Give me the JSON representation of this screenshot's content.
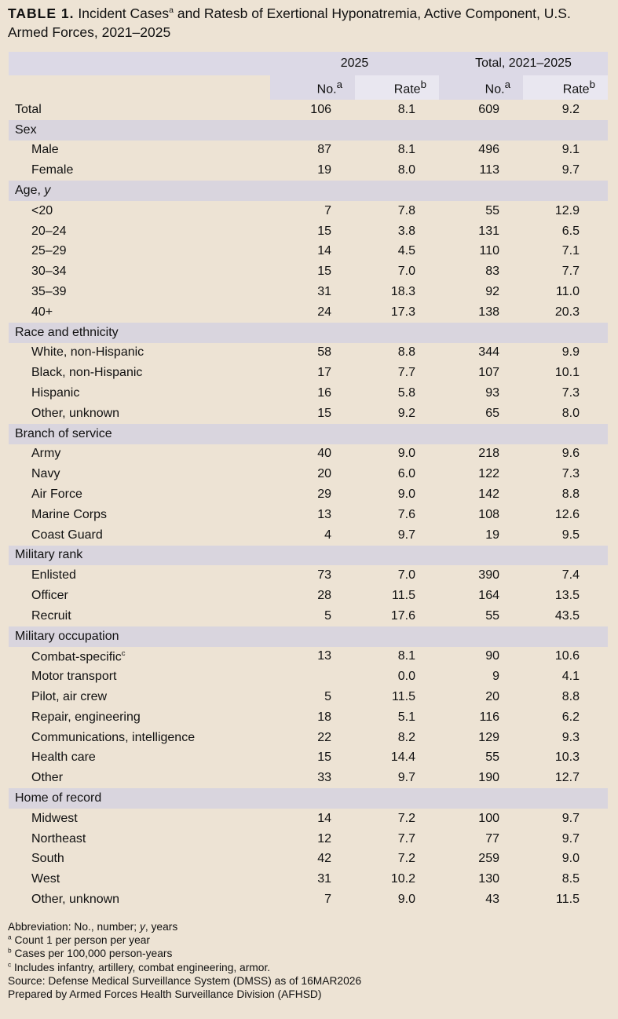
{
  "title": {
    "label": "TABLE 1.",
    "text": "Incident Cases",
    "sup_a": "a",
    "text2": " and Ratesb of Exertional Hyponatremia, Active Component, U.S. Armed Forces, 2021–2025"
  },
  "header": {
    "group_2025": "2025",
    "group_total": "Total, 2021–2025",
    "no": "No.",
    "rate": "Rate",
    "sup_a": "a",
    "sup_b": "b"
  },
  "rows": [
    {
      "label": "Total",
      "type": "total",
      "no2025": "106",
      "rate2025": "8.1",
      "noTotal": "609",
      "rateTotal": "9.2"
    },
    {
      "label": "Sex",
      "type": "section"
    },
    {
      "label": "Male",
      "type": "item",
      "no2025": "87",
      "rate2025": "8.1",
      "noTotal": "496",
      "rateTotal": "9.1"
    },
    {
      "label": "Female",
      "type": "item",
      "no2025": "19",
      "rate2025": "8.0",
      "noTotal": "113",
      "rateTotal": "9.7"
    },
    {
      "label": "Age, ",
      "italic": "y",
      "type": "section"
    },
    {
      "label": "<20",
      "type": "item",
      "no2025": "7",
      "rate2025": "7.8",
      "noTotal": "55",
      "rateTotal": "12.9"
    },
    {
      "label": "20–24",
      "type": "item",
      "no2025": "15",
      "rate2025": "3.8",
      "noTotal": "131",
      "rateTotal": "6.5"
    },
    {
      "label": "25–29",
      "type": "item",
      "no2025": "14",
      "rate2025": "4.5",
      "noTotal": "110",
      "rateTotal": "7.1"
    },
    {
      "label": "30–34",
      "type": "item",
      "no2025": "15",
      "rate2025": "7.0",
      "noTotal": "83",
      "rateTotal": "7.7"
    },
    {
      "label": "35–39",
      "type": "item",
      "no2025": "31",
      "rate2025": "18.3",
      "noTotal": "92",
      "rateTotal": "11.0"
    },
    {
      "label": "40+",
      "type": "item",
      "no2025": "24",
      "rate2025": "17.3",
      "noTotal": "138",
      "rateTotal": "20.3"
    },
    {
      "label": "Race and ethnicity",
      "type": "section"
    },
    {
      "label": "White, non-Hispanic",
      "type": "item",
      "no2025": "58",
      "rate2025": "8.8",
      "noTotal": "344",
      "rateTotal": "9.9"
    },
    {
      "label": "Black, non-Hispanic",
      "type": "item",
      "no2025": "17",
      "rate2025": "7.7",
      "noTotal": "107",
      "rateTotal": "10.1"
    },
    {
      "label": "Hispanic",
      "type": "item",
      "no2025": "16",
      "rate2025": "5.8",
      "noTotal": "93",
      "rateTotal": "7.3"
    },
    {
      "label": "Other, unknown",
      "type": "item",
      "no2025": "15",
      "rate2025": "9.2",
      "noTotal": "65",
      "rateTotal": "8.0"
    },
    {
      "label": "Branch of service",
      "type": "section"
    },
    {
      "label": "Army",
      "type": "item",
      "no2025": "40",
      "rate2025": "9.0",
      "noTotal": "218",
      "rateTotal": "9.6"
    },
    {
      "label": "Navy",
      "type": "item",
      "no2025": "20",
      "rate2025": "6.0",
      "noTotal": "122",
      "rateTotal": "7.3"
    },
    {
      "label": "Air Force",
      "type": "item",
      "no2025": "29",
      "rate2025": "9.0",
      "noTotal": "142",
      "rateTotal": "8.8"
    },
    {
      "label": "Marine Corps",
      "type": "item",
      "no2025": "13",
      "rate2025": "7.6",
      "noTotal": "108",
      "rateTotal": "12.6"
    },
    {
      "label": "Coast Guard",
      "type": "item",
      "no2025": "4",
      "rate2025": "9.7",
      "noTotal": "19",
      "rateTotal": "9.5"
    },
    {
      "label": "Military rank",
      "type": "section"
    },
    {
      "label": "Enlisted",
      "type": "item",
      "no2025": "73",
      "rate2025": "7.0",
      "noTotal": "390",
      "rateTotal": "7.4"
    },
    {
      "label": "Officer",
      "type": "item",
      "no2025": "28",
      "rate2025": "11.5",
      "noTotal": "164",
      "rateTotal": "13.5"
    },
    {
      "label": "Recruit",
      "type": "item",
      "no2025": "5",
      "rate2025": "17.6",
      "noTotal": "55",
      "rateTotal": "43.5"
    },
    {
      "label": "Military occupation",
      "type": "section"
    },
    {
      "label": "Combat-specific",
      "sup": "c",
      "type": "item",
      "no2025": "13",
      "rate2025": "8.1",
      "noTotal": "90",
      "rateTotal": "10.6"
    },
    {
      "label": "Motor transport",
      "type": "item",
      "no2025": "",
      "rate2025": "0.0",
      "noTotal": "9",
      "rateTotal": "4.1"
    },
    {
      "label": "Pilot, air crew",
      "type": "item",
      "no2025": "5",
      "rate2025": "11.5",
      "noTotal": "20",
      "rateTotal": "8.8"
    },
    {
      "label": "Repair, engineering",
      "type": "item",
      "no2025": "18",
      "rate2025": "5.1",
      "noTotal": "116",
      "rateTotal": "6.2"
    },
    {
      "label": "Communications, intelligence",
      "type": "item",
      "no2025": "22",
      "rate2025": "8.2",
      "noTotal": "129",
      "rateTotal": "9.3"
    },
    {
      "label": "Health care",
      "type": "item",
      "no2025": "15",
      "rate2025": "14.4",
      "noTotal": "55",
      "rateTotal": "10.3"
    },
    {
      "label": "Other",
      "type": "item",
      "no2025": "33",
      "rate2025": "9.7",
      "noTotal": "190",
      "rateTotal": "12.7"
    },
    {
      "label": "Home of record",
      "type": "section"
    },
    {
      "label": "Midwest",
      "type": "item",
      "no2025": "14",
      "rate2025": "7.2",
      "noTotal": "100",
      "rateTotal": "9.7"
    },
    {
      "label": "Northeast",
      "type": "item",
      "no2025": "12",
      "rate2025": "7.7",
      "noTotal": "77",
      "rateTotal": "9.7"
    },
    {
      "label": "South",
      "type": "item",
      "no2025": "42",
      "rate2025": "7.2",
      "noTotal": "259",
      "rateTotal": "9.0"
    },
    {
      "label": "West",
      "type": "item",
      "no2025": "31",
      "rate2025": "10.2",
      "noTotal": "130",
      "rateTotal": "8.5"
    },
    {
      "label": "Other, unknown",
      "type": "item",
      "no2025": "7",
      "rate2025": "9.0",
      "noTotal": "43",
      "rateTotal": "11.5"
    }
  ],
  "footnotes": {
    "abbrev_pre": "Abbreviation: No., number; ",
    "abbrev_italic": "y",
    "abbrev_post": ", years",
    "a_mark": "a",
    "a_text": " Count 1 per person per year",
    "b_mark": "b",
    "b_text": " Cases per 100,000 person-years",
    "c_mark": "c",
    "c_text": " Includes infantry, artillery, combat engineering, armor.",
    "source": "Source: Defense Medical Surveillance System (DMSS)  as of  16MAR2026",
    "prepared": "Prepared by Armed Forces Health Surveillance Division (AFHSD)"
  },
  "colors": {
    "background": "#ede3d4",
    "header_band": "#dcd9e6",
    "section_band": "#d9d5de"
  }
}
